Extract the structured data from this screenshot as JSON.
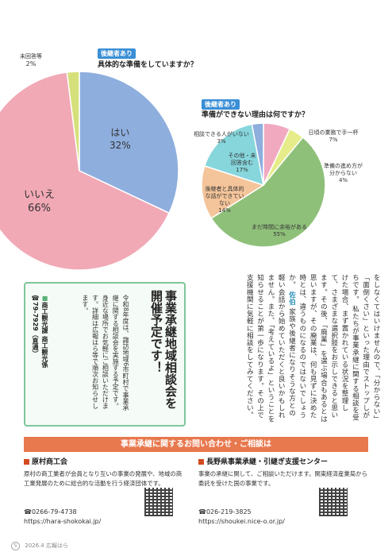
{
  "charts": {
    "q1": {
      "tag": "後継者あり",
      "question": "具体的な準備をしていますか？",
      "labels": {
        "yes": {
          "name": "はい",
          "value": "32%"
        },
        "no": {
          "name": "いいえ",
          "value": "66%"
        },
        "na": {
          "name": "未回答等",
          "value": "2%"
        }
      }
    },
    "q2": {
      "tag": "後継者あり",
      "question": "準備ができない理由は何ですか？",
      "labels": {
        "busy": {
          "name": "日頃の業務で手一杯",
          "value": "7%"
        },
        "unknown": {
          "name": "準備の進め方が分からない",
          "value": "4%"
        },
        "time": {
          "name": "まだ時間に余裕がある",
          "value": "55%"
        },
        "talk": {
          "name": "後継者と具体的な話ができていない",
          "value": "14%"
        },
        "other": {
          "name": "その他・未回答含む",
          "value": "17%"
        },
        "noone": {
          "name": "相談できる人がいない",
          "value": "3%"
        }
      }
    }
  },
  "chart_data": [
    {
      "type": "pie",
      "title": "具体的な準備をしていますか？",
      "categories": [
        "はい",
        "いいえ",
        "未回答等"
      ],
      "values": [
        32,
        66,
        2
      ],
      "colors": [
        "#8eaede",
        "#f1a9b6",
        "#d6e07a"
      ]
    },
    {
      "type": "pie",
      "title": "準備ができない理由は何ですか？",
      "categories": [
        "日頃の業務で手一杯",
        "準備の進め方が分からない",
        "まだ時間に余裕がある",
        "後継者と具体的な話ができていない",
        "その他・未回答含む",
        "相談できる人がいない"
      ],
      "values": [
        7,
        4,
        55,
        14,
        17,
        3
      ],
      "colors": [
        "#f1a9c0",
        "#e6ec8a",
        "#8fc07a",
        "#f4c49a",
        "#86d6dc",
        "#8eaede"
      ]
    }
  ],
  "article": {
    "col1": "をしなくてはいけませんので、「分からない」「面倒くさい」といった理由でストップしがちです。",
    "col2": "私たちが事業承継に関する相談を受けた場合、まず置かれている状況を整理して、さまざまな選択肢をお示しできると思います。その後、「廃業」を選ぶ場合もあるとは思いますが、その廃業は、何も見ずに決めた時とは、違うものになるのではないでしょうか。",
    "label": "佐伯",
    "col3": "家族や後継者になりそうな方との軽い会話から始めていただくと良いかもしれません。また、「考えているよ」ということを知らせることが第一歩になります。その上で支援機関に気軽に相談をしてみてください。"
  },
  "event": {
    "title": "事業承継地域相談会を開催予定です！",
    "body": "令和8年度は、諏訪地域6市町村で事業承継に関する相談会を実施する予定です。身近な場所でお気軽にご相談いただけます。詳細は広報はら等で順次お知らせします。",
    "contact_label": "商工観光課 商工観光係",
    "contact_phone": "☎79-7929（直通）"
  },
  "contact": {
    "banner": "事業承継に関するお問い合わせ・ご相談は",
    "left": {
      "name": "原村商工会",
      "desc": "原村の商工業者が会員となり互いの事業の発展や、地域の商工業発展のために総合的な活動を行う経済団体です。",
      "phone": "☎0266-79-4738",
      "url": "https://hara-shokokai.jp/"
    },
    "right": {
      "name": "長野県事業承継・引継ぎ支援センター",
      "desc": "事業の承継に関して、ご相談いただけます。関東経済産業局から委託を受けた国の事業です。",
      "phone": "☎026-219-3825",
      "url": "https://shoukei.nice-o.or.jp/"
    }
  },
  "footer": {
    "page": "5",
    "text": "2026.4 広報はら"
  }
}
